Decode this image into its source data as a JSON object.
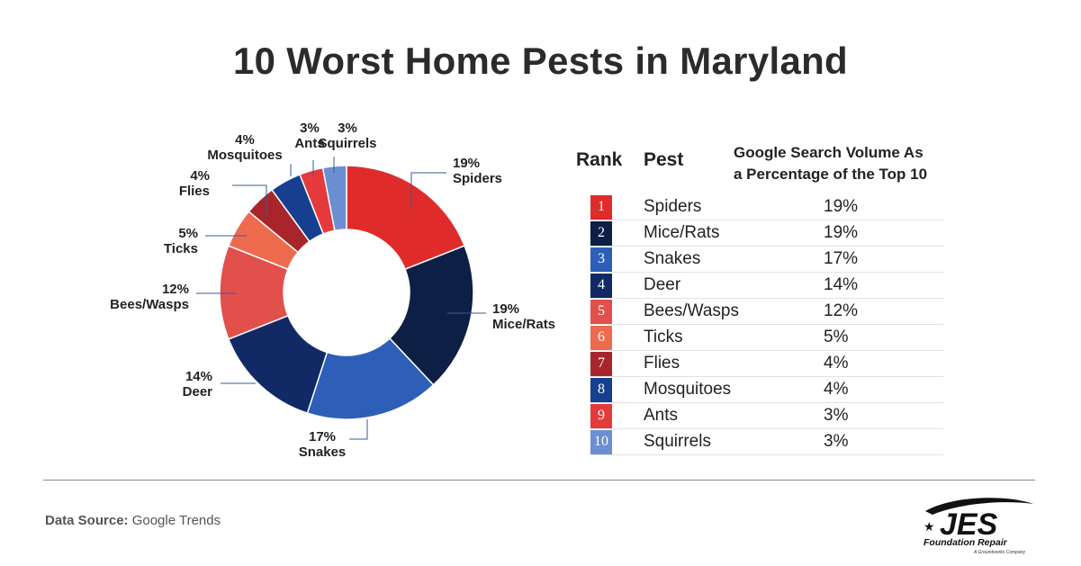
{
  "title": "10 Worst Home Pests in Maryland",
  "chart_data": {
    "type": "pie",
    "title": "10 Worst Home Pests in Maryland",
    "categories": [
      "Spiders",
      "Mice/Rats",
      "Snakes",
      "Deer",
      "Bees/Wasps",
      "Ticks",
      "Flies",
      "Mosquitoes",
      "Ants",
      "Squirrels"
    ],
    "values": [
      19,
      19,
      17,
      14,
      12,
      5,
      4,
      4,
      3,
      3
    ],
    "value_labels": [
      "19%",
      "19%",
      "17%",
      "14%",
      "12%",
      "5%",
      "4%",
      "4%",
      "3%",
      "3%"
    ],
    "colors": [
      "#e02b2b",
      "#0d1f44",
      "#2d5fb8",
      "#112a66",
      "#e2504c",
      "#ee6a4e",
      "#a8262b",
      "#173f8f",
      "#e43a3c",
      "#6b8fd0"
    ],
    "donut": true
  },
  "table": {
    "headers": {
      "rank": "Rank",
      "pest": "Pest",
      "volume_line1": "Google Search Volume As",
      "volume_line2": "a Percentage of the Top 10"
    },
    "rows": [
      {
        "rank": "1",
        "pest": "Spiders",
        "pct": "19%"
      },
      {
        "rank": "2",
        "pest": "Mice/Rats",
        "pct": "19%"
      },
      {
        "rank": "3",
        "pest": "Snakes",
        "pct": "17%"
      },
      {
        "rank": "4",
        "pest": "Deer",
        "pct": "14%"
      },
      {
        "rank": "5",
        "pest": "Bees/Wasps",
        "pct": "12%"
      },
      {
        "rank": "6",
        "pest": "Ticks",
        "pct": "5%"
      },
      {
        "rank": "7",
        "pest": "Flies",
        "pct": "4%"
      },
      {
        "rank": "8",
        "pest": "Mosquitoes",
        "pct": "4%"
      },
      {
        "rank": "9",
        "pest": "Ants",
        "pct": "3%"
      },
      {
        "rank": "10",
        "pest": "Squirrels",
        "pct": "3%"
      }
    ]
  },
  "footer": {
    "source_label": "Data Source:",
    "source_value": "Google Trends"
  },
  "logo": {
    "name": "JES",
    "subtitle": "Foundation Repair",
    "tagline": "A Groundworks Company"
  }
}
